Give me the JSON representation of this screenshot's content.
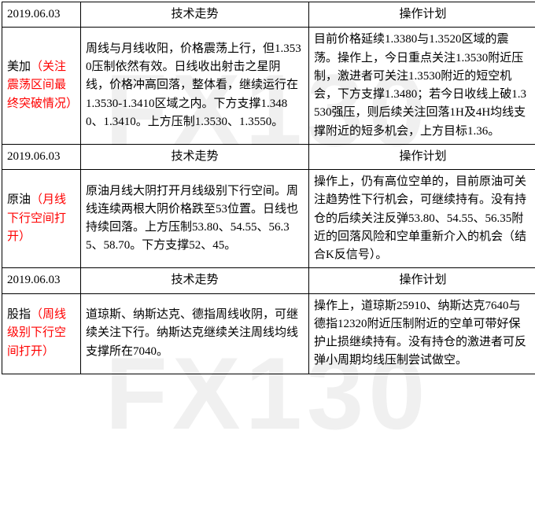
{
  "watermark": "FX130",
  "columns": {
    "date_header": "2019.06.03",
    "tech_trend": "技术走势",
    "op_plan": "操作计划"
  },
  "rows": [
    {
      "date": "2019.06.03",
      "label_black": "美加",
      "label_red": "（关注震荡区间最终突破情况）",
      "trend": "周线与月线收阳，价格震荡上行，但1.3530压制依然有效。日线收出射击之星阴线，价格冲高回落，整体看，继续运行在1.3530-1.3410区域之内。下方支撑1.3480、1.3410。上方压制1.3530、1.3550。",
      "plan": "目前价格延续1.3380与1.3520区域的震荡。操作上，今日重点关注1.3530附近压制，激进者可关注1.3530附近的短空机会，下方支撑1.3480；若今日收线上破1.3530强压，则后续关注回落1H及4H均线支撑附近的短多机会，上方目标1.36。"
    },
    {
      "date": "2019.06.03",
      "label_black": "原油",
      "label_red": "（月线下行空间打开）",
      "trend": "原油月线大阴打开月线级别下行空间。周线连续两根大阴价格跌至53位置。日线也持续回落。上方压制53.80、54.55、56.35、58.70。下方支撑52、45。",
      "plan": "操作上，仍有高位空单的，目前原油可关注趋势性下行机会，可继续持有。没有持仓的后续关注反弹53.80、54.55、56.35附近的回落风险和空单重新介入的机会（结合K反信号）。"
    },
    {
      "date": "2019.06.03",
      "label_black": "股指",
      "label_red": "（周线级别下行空间打开）",
      "trend": "道琼斯、纳斯达克、德指周线收阴，可继续关注下行。纳斯达克继续关注周线均线支撑所在7040。",
      "plan": "操作上，道琼斯25910、纳斯达克7640与德指12320附近压制附近的空单可带好保护止损继续持有。没有持仓的激进者可反弹小周期均线压制尝试做空。"
    }
  ]
}
